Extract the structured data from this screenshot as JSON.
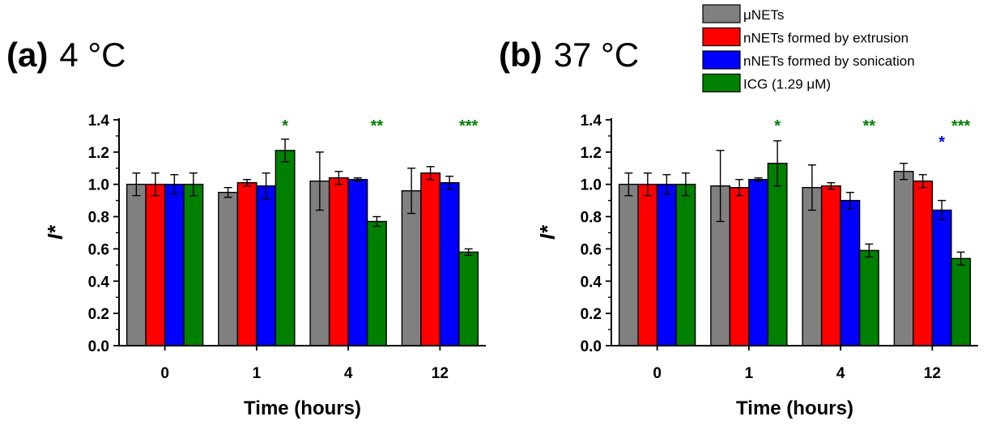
{
  "legend": {
    "entries": [
      {
        "label": "μNETs",
        "color": "#808080"
      },
      {
        "label": "nNETs formed by extrusion",
        "color": "#ff0000"
      },
      {
        "label": "nNETs formed by sonication",
        "color": "#0000ff"
      },
      {
        "label": "ICG (1.29 μM)",
        "color": "#008000"
      }
    ],
    "placement": "top-right"
  },
  "chart_data": [
    {
      "type": "bar",
      "panel_letter": "(a)",
      "panel_condition": "4 °C",
      "xlabel": "Time (hours)",
      "ylabel": "I*",
      "ylim": [
        0,
        1.4
      ],
      "yticks": [
        "0.0",
        "0.2",
        "0.4",
        "0.6",
        "0.8",
        "1.0",
        "1.2",
        "1.4"
      ],
      "categories": [
        "0",
        "1",
        "4",
        "12"
      ],
      "series": [
        {
          "name": "μNETs",
          "color": "#808080",
          "values": [
            1.0,
            0.95,
            1.02,
            0.96
          ],
          "errors": [
            0.07,
            0.03,
            0.18,
            0.14
          ]
        },
        {
          "name": "nNETs formed by extrusion",
          "color": "#ff0000",
          "values": [
            1.0,
            1.01,
            1.04,
            1.07
          ],
          "errors": [
            0.07,
            0.02,
            0.04,
            0.04
          ]
        },
        {
          "name": "nNETs formed by sonication",
          "color": "#0000ff",
          "values": [
            1.0,
            0.99,
            1.03,
            1.01
          ],
          "errors": [
            0.06,
            0.08,
            0.01,
            0.04
          ]
        },
        {
          "name": "ICG (1.29 μM)",
          "color": "#008000",
          "values": [
            1.0,
            1.21,
            0.77,
            0.58
          ],
          "errors": [
            0.07,
            0.07,
            0.03,
            0.02
          ]
        }
      ],
      "annotations": [
        {
          "text": "*",
          "category": "1",
          "series": 3,
          "y": 1.38,
          "color": "#008000"
        },
        {
          "text": "**",
          "category": "4",
          "series": 3,
          "y": 1.38,
          "color": "#008000"
        },
        {
          "text": "***",
          "category": "12",
          "series": 3,
          "y": 1.38,
          "color": "#008000"
        }
      ]
    },
    {
      "type": "bar",
      "panel_letter": "(b)",
      "panel_condition": "37 °C",
      "xlabel": "Time (hours)",
      "ylabel": "I*",
      "ylim": [
        0,
        1.4
      ],
      "yticks": [
        "0.0",
        "0.2",
        "0.4",
        "0.6",
        "0.8",
        "1.0",
        "1.2",
        "1.4"
      ],
      "categories": [
        "0",
        "1",
        "4",
        "12"
      ],
      "series": [
        {
          "name": "μNETs",
          "color": "#808080",
          "values": [
            1.0,
            0.99,
            0.98,
            1.08
          ],
          "errors": [
            0.07,
            0.22,
            0.14,
            0.05
          ]
        },
        {
          "name": "nNETs formed by extrusion",
          "color": "#ff0000",
          "values": [
            1.0,
            0.98,
            0.99,
            1.02
          ],
          "errors": [
            0.07,
            0.05,
            0.02,
            0.04
          ]
        },
        {
          "name": "nNETs formed by sonication",
          "color": "#0000ff",
          "values": [
            1.0,
            1.03,
            0.9,
            0.84
          ],
          "errors": [
            0.06,
            0.01,
            0.05,
            0.06
          ]
        },
        {
          "name": "ICG (1.29 μM)",
          "color": "#008000",
          "values": [
            1.0,
            1.13,
            0.59,
            0.54
          ],
          "errors": [
            0.07,
            0.14,
            0.04,
            0.04
          ]
        }
      ],
      "annotations": [
        {
          "text": "*",
          "category": "1",
          "series": 3,
          "y": 1.38,
          "color": "#008000"
        },
        {
          "text": "**",
          "category": "4",
          "series": 3,
          "y": 1.38,
          "color": "#008000"
        },
        {
          "text": "*",
          "category": "12",
          "series": 2,
          "y": 1.28,
          "color": "#0000ff"
        },
        {
          "text": "***",
          "category": "12",
          "series": 3,
          "y": 1.38,
          "color": "#008000"
        }
      ]
    }
  ]
}
